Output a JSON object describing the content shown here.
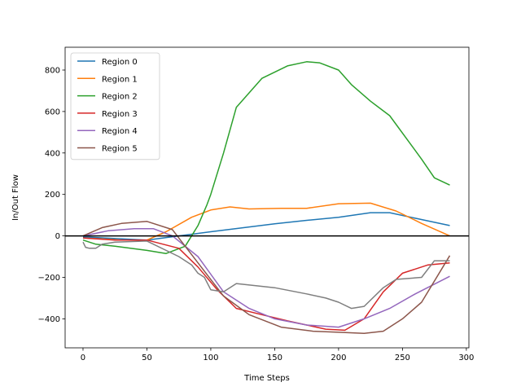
{
  "chart_data": {
    "type": "line",
    "xlabel": "Time Steps",
    "ylabel": "In/Out Flow",
    "xlim": [
      -14,
      302
    ],
    "ylim": [
      -540,
      910
    ],
    "xticks": [
      0,
      50,
      100,
      150,
      200,
      250,
      300
    ],
    "yticks": [
      -400,
      -200,
      0,
      200,
      400,
      600,
      800
    ],
    "grid": false,
    "legend_position": "top-left",
    "reference_line": {
      "y": 0,
      "color": "#000000"
    },
    "series": [
      {
        "name": "Region 0",
        "color": "#1f77b4",
        "x": [
          0,
          50,
          75,
          100,
          150,
          175,
          200,
          225,
          240,
          260,
          287
        ],
        "y": [
          -5,
          -20,
          0,
          20,
          58,
          75,
          90,
          112,
          112,
          85,
          50
        ]
      },
      {
        "name": "Region 1",
        "color": "#ff7f0e",
        "x": [
          0,
          30,
          50,
          65,
          85,
          100,
          115,
          130,
          155,
          175,
          200,
          225,
          245,
          265,
          287
        ],
        "y": [
          -10,
          -20,
          -20,
          20,
          90,
          125,
          140,
          130,
          133,
          133,
          155,
          158,
          120,
          60,
          0
        ]
      },
      {
        "name": "Region 2",
        "color": "#2ca02c",
        "x": [
          0,
          10,
          25,
          50,
          65,
          80,
          90,
          97,
          100,
          110,
          120,
          140,
          160,
          175,
          185,
          200,
          210,
          225,
          240,
          265,
          275,
          287
        ],
        "y": [
          -20,
          -40,
          -50,
          -70,
          -85,
          -50,
          50,
          150,
          200,
          400,
          620,
          760,
          820,
          840,
          835,
          800,
          730,
          650,
          580,
          370,
          280,
          245
        ]
      },
      {
        "name": "Region 3",
        "color": "#d62728",
        "x": [
          0,
          25,
          50,
          75,
          90,
          105,
          120,
          140,
          160,
          175,
          190,
          205,
          220,
          235,
          250,
          270,
          287
        ],
        "y": [
          -10,
          -20,
          -20,
          -60,
          -150,
          -260,
          -350,
          -380,
          -410,
          -430,
          -450,
          -455,
          -400,
          -270,
          -180,
          -140,
          -130
        ]
      },
      {
        "name": "Region 4",
        "color": "#9467bd",
        "x": [
          0,
          20,
          40,
          55,
          70,
          90,
          110,
          130,
          150,
          175,
          200,
          220,
          240,
          260,
          287
        ],
        "y": [
          0,
          25,
          35,
          35,
          0,
          -100,
          -270,
          -350,
          -400,
          -430,
          -440,
          -400,
          -350,
          -280,
          -195
        ]
      },
      {
        "name": "Region 5",
        "color": "#8c564b",
        "x": [
          0,
          15,
          30,
          50,
          70,
          90,
          110,
          130,
          155,
          180,
          200,
          220,
          235,
          250,
          265,
          287
        ],
        "y": [
          0,
          40,
          60,
          70,
          30,
          -130,
          -290,
          -380,
          -440,
          -460,
          -465,
          -470,
          -460,
          -400,
          -320,
          -95
        ]
      },
      {
        "name": "",
        "color": "#7f7f7f",
        "x": [
          0,
          2,
          5,
          10,
          15,
          25,
          50,
          75,
          85,
          90,
          95,
          100,
          110,
          120,
          150,
          175,
          190,
          200,
          210,
          220,
          235,
          245,
          265,
          275,
          287
        ],
        "y": [
          -30,
          -55,
          -60,
          -60,
          -40,
          -30,
          -25,
          -100,
          -140,
          -180,
          -200,
          -260,
          -270,
          -230,
          -250,
          -280,
          -300,
          -320,
          -350,
          -340,
          -250,
          -210,
          -200,
          -120,
          -120
        ]
      }
    ]
  }
}
